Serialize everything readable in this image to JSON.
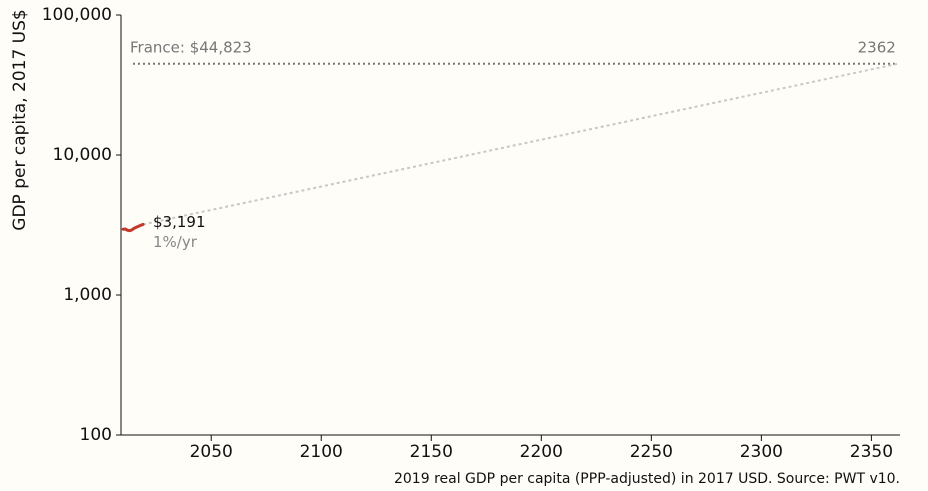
{
  "chart_data": {
    "type": "line",
    "y_label": "GDP per capita, 2017 US$",
    "source": "2019 real GDP per capita (PPP-adjusted) in 2017 USD. Source: PWT v10.",
    "x": [
      2010,
      2011,
      2012,
      2013,
      2014,
      2015,
      2016,
      2017,
      2018,
      2019
    ],
    "values": [
      2950,
      2960,
      2900,
      2880,
      2920,
      3000,
      3050,
      3100,
      3150,
      3191
    ],
    "value_labels": [
      null,
      null,
      null,
      null,
      null,
      null,
      null,
      null,
      null,
      "$3,191"
    ],
    "color": "#c0392b",
    "projection": {
      "x": [
        2019,
        2362
      ],
      "values": [
        3191,
        44823
      ],
      "label": "1%/yr",
      "color": "#c8c8c8"
    },
    "reference": {
      "label": "France: $44,823",
      "value": 44823,
      "color": "#777777"
    },
    "xlim": [
      2009,
      2363
    ],
    "xticks": [
      2050,
      2100,
      2150,
      2200,
      2250,
      2300,
      2350
    ],
    "ylim": [
      100,
      100000
    ],
    "yticks": [
      {
        "value": 100,
        "label": "100"
      },
      {
        "value": 1000,
        "label": "1,000"
      },
      {
        "value": 10000,
        "label": "10,000"
      },
      {
        "value": 100000,
        "label": "100,000"
      }
    ],
    "log_y": true
  }
}
